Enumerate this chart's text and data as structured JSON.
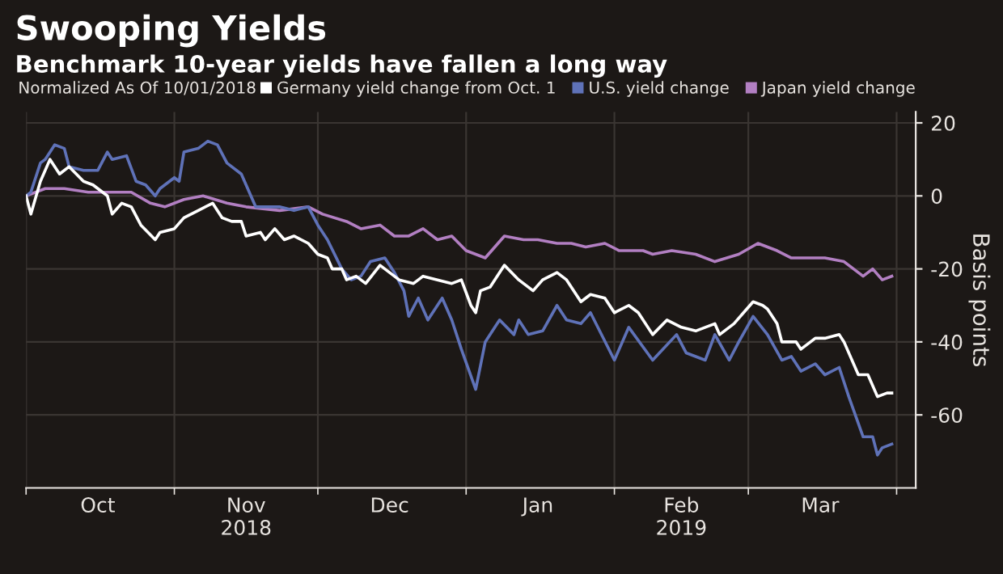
{
  "chart_data": {
    "type": "line",
    "title": "Swooping Yields",
    "subtitle": "Benchmark 10-year yields have fallen a long way",
    "legend_title": "Normalized As Of 10/01/2018",
    "ylabel": "Basis points",
    "xlim": [
      "2018-10-01",
      "2019-04-05"
    ],
    "ylim": [
      -80,
      23
    ],
    "yticks": [
      20,
      0,
      -20,
      -40,
      -60
    ],
    "xticks": [
      {
        "value": "2018-10-16",
        "label": "Oct"
      },
      {
        "value": "2018-11-16",
        "label": "Nov\n2018"
      },
      {
        "value": "2018-12-16",
        "label": "Dec"
      },
      {
        "value": "2019-01-16",
        "label": "Jan"
      },
      {
        "value": "2019-02-15",
        "label": "Feb\n2019"
      },
      {
        "value": "2019-03-16",
        "label": "Mar"
      }
    ],
    "grid": true,
    "legend": "top",
    "line_style": "solid",
    "series": [
      {
        "name": "Germany yield change from Oct. 1",
        "color": "#ffffff",
        "x": [
          "2018-10-01",
          "2018-10-02",
          "2018-10-04",
          "2018-10-06",
          "2018-10-08",
          "2018-10-10",
          "2018-10-13",
          "2018-10-15",
          "2018-10-18",
          "2018-10-19",
          "2018-10-21",
          "2018-10-23",
          "2018-10-25",
          "2018-10-28",
          "2018-10-29",
          "2018-11-01",
          "2018-11-03",
          "2018-11-06",
          "2018-11-09",
          "2018-11-11",
          "2018-11-13",
          "2018-11-15",
          "2018-11-16",
          "2018-11-19",
          "2018-11-20",
          "2018-11-22",
          "2018-11-24",
          "2018-11-26",
          "2018-11-29",
          "2018-12-01",
          "2018-12-03",
          "2018-12-04",
          "2018-12-06",
          "2018-12-07",
          "2018-12-09",
          "2018-12-11",
          "2018-12-14",
          "2018-12-16",
          "2018-12-18",
          "2018-12-21",
          "2018-12-23",
          "2018-12-26",
          "2018-12-29",
          "2018-12-31",
          "2019-01-02",
          "2019-01-03",
          "2019-01-04",
          "2019-01-06",
          "2019-01-09",
          "2019-01-12",
          "2019-01-15",
          "2019-01-17",
          "2019-01-20",
          "2019-01-22",
          "2019-01-25",
          "2019-01-27",
          "2019-01-30",
          "2019-02-01",
          "2019-02-04",
          "2019-02-06",
          "2019-02-09",
          "2019-02-12",
          "2019-02-15",
          "2019-02-18",
          "2019-02-20",
          "2019-02-22",
          "2019-02-23",
          "2019-02-26",
          "2019-02-28",
          "2019-03-02",
          "2019-03-04",
          "2019-03-05",
          "2019-03-07",
          "2019-03-08",
          "2019-03-11",
          "2019-03-12",
          "2019-03-15",
          "2019-03-17",
          "2019-03-20",
          "2019-03-21",
          "2019-03-24",
          "2019-03-26",
          "2019-03-28",
          "2019-03-30",
          "2019-03-31"
        ],
        "values": [
          0,
          -5,
          4,
          10,
          6,
          8,
          4,
          3,
          0,
          -5,
          -2,
          -3,
          -8,
          -12,
          -10,
          -9,
          -6,
          -4,
          -2,
          -6,
          -7,
          -7,
          -11,
          -10,
          -12,
          -9,
          -12,
          -11,
          -13,
          -16,
          -17,
          -20,
          -20,
          -23,
          -22,
          -24,
          -19,
          -21,
          -23,
          -24,
          -22,
          -23,
          -24,
          -23,
          -30,
          -32,
          -26,
          -25,
          -19,
          -23,
          -26,
          -23,
          -21,
          -23,
          -29,
          -27,
          -28,
          -32,
          -30,
          -32,
          -38,
          -34,
          -36,
          -37,
          -36,
          -35,
          -38,
          -35,
          -32,
          -29,
          -30,
          -31,
          -35,
          -40,
          -40,
          -42,
          -39,
          -39,
          -38,
          -40,
          -49,
          -49,
          -55,
          -54,
          -54
        ]
      },
      {
        "name": "U.S. yield change",
        "color": "#5f72b8",
        "x": [
          "2018-10-01",
          "2018-10-02",
          "2018-10-04",
          "2018-10-05",
          "2018-10-07",
          "2018-10-09",
          "2018-10-10",
          "2018-10-13",
          "2018-10-16",
          "2018-10-18",
          "2018-10-19",
          "2018-10-22",
          "2018-10-24",
          "2018-10-26",
          "2018-10-28",
          "2018-10-29",
          "2018-11-01",
          "2018-11-02",
          "2018-11-03",
          "2018-11-06",
          "2018-11-08",
          "2018-11-10",
          "2018-11-12",
          "2018-11-15",
          "2018-11-16",
          "2018-11-18",
          "2018-11-20",
          "2018-11-23",
          "2018-11-26",
          "2018-11-29",
          "2018-12-01",
          "2018-12-03",
          "2018-12-06",
          "2018-12-08",
          "2018-12-10",
          "2018-12-12",
          "2018-12-15",
          "2018-12-17",
          "2018-12-19",
          "2018-12-20",
          "2018-12-22",
          "2018-12-24",
          "2018-12-27",
          "2018-12-29",
          "2018-12-31",
          "2019-01-03",
          "2019-01-05",
          "2019-01-07",
          "2019-01-08",
          "2019-01-11",
          "2019-01-12",
          "2019-01-14",
          "2019-01-17",
          "2019-01-20",
          "2019-01-22",
          "2019-01-25",
          "2019-01-27",
          "2019-02-01",
          "2019-02-04",
          "2019-02-09",
          "2019-02-14",
          "2019-02-16",
          "2019-02-20",
          "2019-02-22",
          "2019-02-25",
          "2019-02-27",
          "2019-03-02",
          "2019-03-05",
          "2019-03-08",
          "2019-03-10",
          "2019-03-12",
          "2019-03-15",
          "2019-03-17",
          "2019-03-20",
          "2019-03-22",
          "2019-03-25",
          "2019-03-27",
          "2019-03-28",
          "2019-03-29",
          "2019-03-31"
        ],
        "values": [
          0,
          1,
          9,
          10,
          14,
          13,
          8,
          7,
          7,
          12,
          10,
          11,
          4,
          3,
          0,
          2,
          5,
          4,
          12,
          13,
          15,
          14,
          9,
          6,
          3,
          -3,
          -3,
          -3,
          -4,
          -3,
          -8,
          -12,
          -20,
          -23,
          -22,
          -18,
          -17,
          -21,
          -26,
          -33,
          -28,
          -34,
          -28,
          -34,
          -42,
          -53,
          -40,
          -36,
          -34,
          -38,
          -34,
          -38,
          -37,
          -30,
          -34,
          -35,
          -32,
          -45,
          -36,
          -45,
          -38,
          -43,
          -45,
          -38,
          -45,
          -40,
          -33,
          -38,
          -45,
          -44,
          -48,
          -46,
          -49,
          -47,
          -55,
          -66,
          -66,
          -71,
          -69,
          -68
        ]
      },
      {
        "name": "Japan yield change",
        "color": "#b27fc2",
        "x": [
          "2018-10-01",
          "2018-10-05",
          "2018-10-09",
          "2018-10-14",
          "2018-10-18",
          "2018-10-23",
          "2018-10-27",
          "2018-10-30",
          "2018-11-03",
          "2018-11-07",
          "2018-11-12",
          "2018-11-16",
          "2018-11-23",
          "2018-11-29",
          "2018-12-02",
          "2018-12-07",
          "2018-12-10",
          "2018-12-14",
          "2018-12-17",
          "2018-12-20",
          "2018-12-23",
          "2018-12-26",
          "2018-12-29",
          "2019-01-01",
          "2019-01-05",
          "2019-01-09",
          "2019-01-13",
          "2019-01-16",
          "2019-01-20",
          "2019-01-23",
          "2019-01-26",
          "2019-01-30",
          "2019-02-02",
          "2019-02-07",
          "2019-02-09",
          "2019-02-13",
          "2019-02-18",
          "2019-02-22",
          "2019-02-27",
          "2019-03-03",
          "2019-03-07",
          "2019-03-10",
          "2019-03-13",
          "2019-03-17",
          "2019-03-21",
          "2019-03-25",
          "2019-03-27",
          "2019-03-29",
          "2019-03-31"
        ],
        "values": [
          0,
          2,
          2,
          1,
          1,
          1,
          -2,
          -3,
          -1,
          0,
          -2,
          -3,
          -4,
          -3,
          -5,
          -7,
          -9,
          -8,
          -11,
          -11,
          -9,
          -12,
          -11,
          -15,
          -17,
          -11,
          -12,
          -12,
          -13,
          -13,
          -14,
          -13,
          -15,
          -15,
          -16,
          -15,
          -16,
          -18,
          -16,
          -13,
          -15,
          -17,
          -17,
          -17,
          -18,
          -22,
          -20,
          -23,
          -22
        ]
      }
    ]
  }
}
